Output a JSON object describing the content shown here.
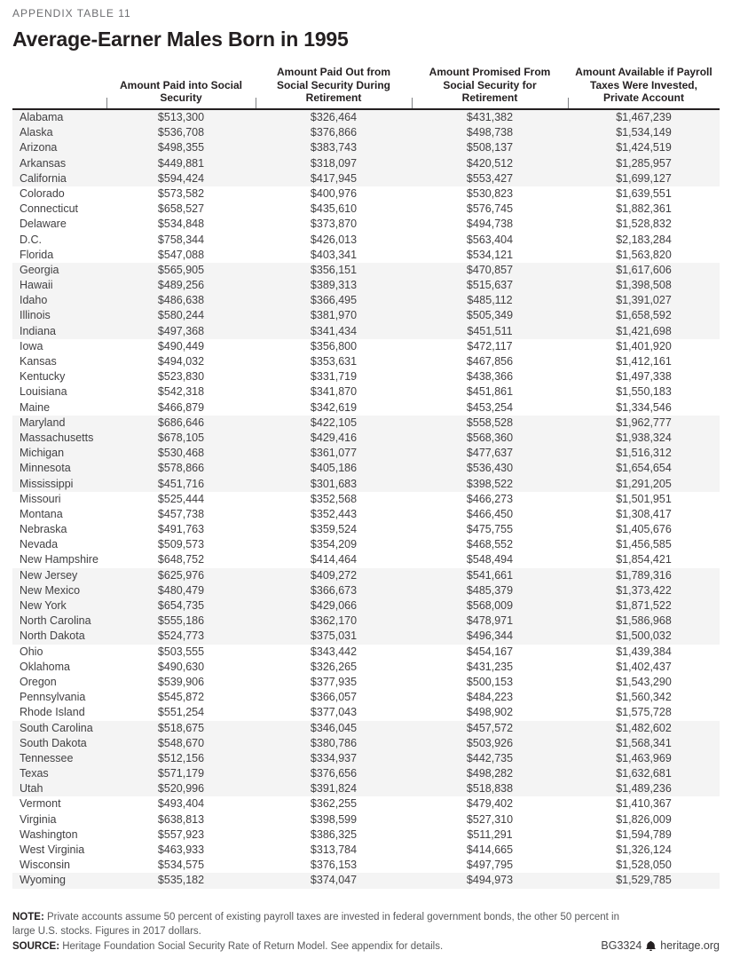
{
  "eyebrow": "APPENDIX TABLE 11",
  "title": "Average-Earner Males Born in 1995",
  "table": {
    "columns": [
      "",
      "Amount Paid into Social Security",
      "Amount Paid Out from Social Security During Retirement",
      "Amount Promised From Social Security for Retirement",
      "Amount Available if Payroll Taxes Were Invested, Private Account"
    ],
    "rows": [
      [
        "Alabama",
        "$513,300",
        "$326,464",
        "$431,382",
        "$1,467,239"
      ],
      [
        "Alaska",
        "$536,708",
        "$376,866",
        "$498,738",
        "$1,534,149"
      ],
      [
        "Arizona",
        "$498,355",
        "$383,743",
        "$508,137",
        "$1,424,519"
      ],
      [
        "Arkansas",
        "$449,881",
        "$318,097",
        "$420,512",
        "$1,285,957"
      ],
      [
        "California",
        "$594,424",
        "$417,945",
        "$553,427",
        "$1,699,127"
      ],
      [
        "Colorado",
        "$573,582",
        "$400,976",
        "$530,823",
        "$1,639,551"
      ],
      [
        "Connecticut",
        "$658,527",
        "$435,610",
        "$576,745",
        "$1,882,361"
      ],
      [
        "Delaware",
        "$534,848",
        "$373,870",
        "$494,738",
        "$1,528,832"
      ],
      [
        "D.C.",
        "$758,344",
        "$426,013",
        "$563,404",
        "$2,183,284"
      ],
      [
        "Florida",
        "$547,088",
        "$403,341",
        "$534,121",
        "$1,563,820"
      ],
      [
        "Georgia",
        "$565,905",
        "$356,151",
        "$470,857",
        "$1,617,606"
      ],
      [
        "Hawaii",
        "$489,256",
        "$389,313",
        "$515,637",
        "$1,398,508"
      ],
      [
        "Idaho",
        "$486,638",
        "$366,495",
        "$485,112",
        "$1,391,027"
      ],
      [
        "Illinois",
        "$580,244",
        "$381,970",
        "$505,349",
        "$1,658,592"
      ],
      [
        "Indiana",
        "$497,368",
        "$341,434",
        "$451,511",
        "$1,421,698"
      ],
      [
        "Iowa",
        "$490,449",
        "$356,800",
        "$472,117",
        "$1,401,920"
      ],
      [
        "Kansas",
        "$494,032",
        "$353,631",
        "$467,856",
        "$1,412,161"
      ],
      [
        "Kentucky",
        "$523,830",
        "$331,719",
        "$438,366",
        "$1,497,338"
      ],
      [
        "Louisiana",
        "$542,318",
        "$341,870",
        "$451,861",
        "$1,550,183"
      ],
      [
        "Maine",
        "$466,879",
        "$342,619",
        "$453,254",
        "$1,334,546"
      ],
      [
        "Maryland",
        "$686,646",
        "$422,105",
        "$558,528",
        "$1,962,777"
      ],
      [
        "Massachusetts",
        "$678,105",
        "$429,416",
        "$568,360",
        "$1,938,324"
      ],
      [
        "Michigan",
        "$530,468",
        "$361,077",
        "$477,637",
        "$1,516,312"
      ],
      [
        "Minnesota",
        "$578,866",
        "$405,186",
        "$536,430",
        "$1,654,654"
      ],
      [
        "Mississippi",
        "$451,716",
        "$301,683",
        "$398,522",
        "$1,291,205"
      ],
      [
        "Missouri",
        "$525,444",
        "$352,568",
        "$466,273",
        "$1,501,951"
      ],
      [
        "Montana",
        "$457,738",
        "$352,443",
        "$466,450",
        "$1,308,417"
      ],
      [
        "Nebraska",
        "$491,763",
        "$359,524",
        "$475,755",
        "$1,405,676"
      ],
      [
        "Nevada",
        "$509,573",
        "$354,209",
        "$468,552",
        "$1,456,585"
      ],
      [
        "New Hampshire",
        "$648,752",
        "$414,464",
        "$548,494",
        "$1,854,421"
      ],
      [
        "New Jersey",
        "$625,976",
        "$409,272",
        "$541,661",
        "$1,789,316"
      ],
      [
        "New Mexico",
        "$480,479",
        "$366,673",
        "$485,379",
        "$1,373,422"
      ],
      [
        "New York",
        "$654,735",
        "$429,066",
        "$568,009",
        "$1,871,522"
      ],
      [
        "North Carolina",
        "$555,186",
        "$362,170",
        "$478,971",
        "$1,586,968"
      ],
      [
        "North Dakota",
        "$524,773",
        "$375,031",
        "$496,344",
        "$1,500,032"
      ],
      [
        "Ohio",
        "$503,555",
        "$343,442",
        "$454,167",
        "$1,439,384"
      ],
      [
        "Oklahoma",
        "$490,630",
        "$326,265",
        "$431,235",
        "$1,402,437"
      ],
      [
        "Oregon",
        "$539,906",
        "$377,935",
        "$500,153",
        "$1,543,290"
      ],
      [
        "Pennsylvania",
        "$545,872",
        "$366,057",
        "$484,223",
        "$1,560,342"
      ],
      [
        "Rhode Island",
        "$551,254",
        "$377,043",
        "$498,902",
        "$1,575,728"
      ],
      [
        "South Carolina",
        "$518,675",
        "$346,045",
        "$457,572",
        "$1,482,602"
      ],
      [
        "South Dakota",
        "$548,670",
        "$380,786",
        "$503,926",
        "$1,568,341"
      ],
      [
        "Tennessee",
        "$512,156",
        "$334,937",
        "$442,735",
        "$1,463,969"
      ],
      [
        "Texas",
        "$571,179",
        "$376,656",
        "$498,282",
        "$1,632,681"
      ],
      [
        "Utah",
        "$520,996",
        "$391,824",
        "$518,838",
        "$1,489,236"
      ],
      [
        "Vermont",
        "$493,404",
        "$362,255",
        "$479,402",
        "$1,410,367"
      ],
      [
        "Virginia",
        "$638,813",
        "$398,599",
        "$527,310",
        "$1,826,009"
      ],
      [
        "Washington",
        "$557,923",
        "$386,325",
        "$511,291",
        "$1,594,789"
      ],
      [
        "West Virginia",
        "$463,933",
        "$313,784",
        "$414,665",
        "$1,326,124"
      ],
      [
        "Wisconsin",
        "$534,575",
        "$376,153",
        "$497,795",
        "$1,528,050"
      ],
      [
        "Wyoming",
        "$535,182",
        "$374,047",
        "$494,973",
        "$1,529,785"
      ]
    ],
    "stripe_group_size": 5
  },
  "footer": {
    "note_label": "NOTE:",
    "note_text": " Private accounts assume 50 percent of existing payroll taxes are invested in federal government bonds, the other 50 percent in large U.S. stocks. Figures in 2017 dollars.",
    "source_label": "SOURCE:",
    "source_text": " Heritage Foundation Social Security Rate of Return Model. See appendix for details.",
    "credit_id": "BG3324",
    "credit_site": "heritage.org"
  },
  "colors": {
    "stripe": "#f4f4f4",
    "rule": "#231f20",
    "text": "#414042",
    "muted": "#58595b"
  }
}
